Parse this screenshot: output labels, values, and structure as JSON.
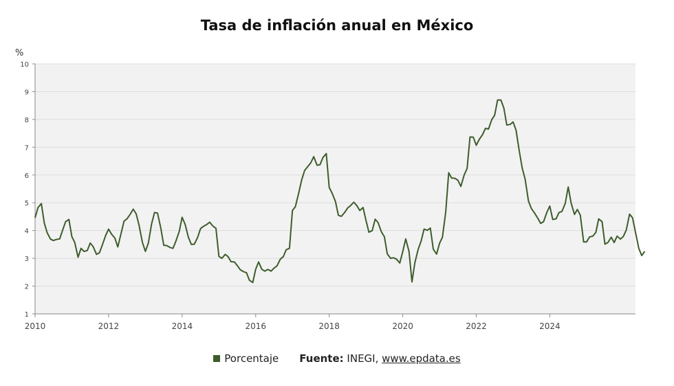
{
  "chart_data": {
    "type": "line",
    "title": "Tasa de inflación anual en México",
    "unit_label": "%",
    "xlim": [
      2010.0,
      2026.33
    ],
    "ylim": [
      1,
      10
    ],
    "x_ticks": [
      "2010",
      "2012",
      "2014",
      "2016",
      "2018",
      "2020",
      "2022",
      "2024"
    ],
    "y_ticks": [
      1,
      2,
      3,
      4,
      5,
      6,
      7,
      8,
      9,
      10
    ],
    "grid": true,
    "legend_position": "bottom",
    "series": [
      {
        "name": "Porcentaje",
        "color": "#3d5c2b",
        "points": [
          [
            2010.0,
            4.46
          ],
          [
            2010.08,
            4.83
          ],
          [
            2010.17,
            4.97
          ],
          [
            2010.25,
            4.27
          ],
          [
            2010.33,
            3.92
          ],
          [
            2010.42,
            3.69
          ],
          [
            2010.5,
            3.64
          ],
          [
            2010.58,
            3.68
          ],
          [
            2010.67,
            3.7
          ],
          [
            2010.75,
            4.02
          ],
          [
            2010.83,
            4.32
          ],
          [
            2010.92,
            4.4
          ],
          [
            2011.0,
            3.78
          ],
          [
            2011.08,
            3.57
          ],
          [
            2011.17,
            3.04
          ],
          [
            2011.25,
            3.36
          ],
          [
            2011.33,
            3.25
          ],
          [
            2011.42,
            3.28
          ],
          [
            2011.5,
            3.55
          ],
          [
            2011.58,
            3.42
          ],
          [
            2011.67,
            3.14
          ],
          [
            2011.75,
            3.2
          ],
          [
            2011.83,
            3.48
          ],
          [
            2011.92,
            3.82
          ],
          [
            2012.0,
            4.05
          ],
          [
            2012.08,
            3.87
          ],
          [
            2012.17,
            3.73
          ],
          [
            2012.25,
            3.41
          ],
          [
            2012.33,
            3.85
          ],
          [
            2012.42,
            4.34
          ],
          [
            2012.5,
            4.42
          ],
          [
            2012.58,
            4.57
          ],
          [
            2012.67,
            4.77
          ],
          [
            2012.75,
            4.6
          ],
          [
            2012.83,
            4.18
          ],
          [
            2012.92,
            3.57
          ],
          [
            2013.0,
            3.25
          ],
          [
            2013.08,
            3.55
          ],
          [
            2013.17,
            4.25
          ],
          [
            2013.25,
            4.65
          ],
          [
            2013.33,
            4.63
          ],
          [
            2013.42,
            4.09
          ],
          [
            2013.5,
            3.47
          ],
          [
            2013.58,
            3.46
          ],
          [
            2013.67,
            3.39
          ],
          [
            2013.75,
            3.36
          ],
          [
            2013.83,
            3.62
          ],
          [
            2013.92,
            3.97
          ],
          [
            2014.0,
            4.48
          ],
          [
            2014.08,
            4.23
          ],
          [
            2014.17,
            3.76
          ],
          [
            2014.25,
            3.5
          ],
          [
            2014.33,
            3.51
          ],
          [
            2014.42,
            3.75
          ],
          [
            2014.5,
            4.07
          ],
          [
            2014.58,
            4.15
          ],
          [
            2014.67,
            4.22
          ],
          [
            2014.75,
            4.3
          ],
          [
            2014.83,
            4.17
          ],
          [
            2014.92,
            4.08
          ],
          [
            2015.0,
            3.07
          ],
          [
            2015.08,
            3.0
          ],
          [
            2015.17,
            3.14
          ],
          [
            2015.25,
            3.06
          ],
          [
            2015.33,
            2.88
          ],
          [
            2015.42,
            2.87
          ],
          [
            2015.5,
            2.74
          ],
          [
            2015.58,
            2.59
          ],
          [
            2015.67,
            2.52
          ],
          [
            2015.75,
            2.48
          ],
          [
            2015.83,
            2.21
          ],
          [
            2015.92,
            2.13
          ],
          [
            2016.0,
            2.61
          ],
          [
            2016.08,
            2.87
          ],
          [
            2016.17,
            2.6
          ],
          [
            2016.25,
            2.54
          ],
          [
            2016.33,
            2.6
          ],
          [
            2016.42,
            2.54
          ],
          [
            2016.5,
            2.65
          ],
          [
            2016.58,
            2.73
          ],
          [
            2016.67,
            2.97
          ],
          [
            2016.75,
            3.06
          ],
          [
            2016.83,
            3.31
          ],
          [
            2016.92,
            3.36
          ],
          [
            2017.0,
            4.72
          ],
          [
            2017.08,
            4.86
          ],
          [
            2017.17,
            5.35
          ],
          [
            2017.25,
            5.82
          ],
          [
            2017.33,
            6.16
          ],
          [
            2017.42,
            6.31
          ],
          [
            2017.5,
            6.44
          ],
          [
            2017.58,
            6.66
          ],
          [
            2017.67,
            6.35
          ],
          [
            2017.75,
            6.37
          ],
          [
            2017.83,
            6.63
          ],
          [
            2017.92,
            6.77
          ],
          [
            2018.0,
            5.55
          ],
          [
            2018.08,
            5.34
          ],
          [
            2018.17,
            5.04
          ],
          [
            2018.25,
            4.55
          ],
          [
            2018.33,
            4.51
          ],
          [
            2018.42,
            4.65
          ],
          [
            2018.5,
            4.81
          ],
          [
            2018.58,
            4.9
          ],
          [
            2018.67,
            5.02
          ],
          [
            2018.75,
            4.9
          ],
          [
            2018.83,
            4.72
          ],
          [
            2018.92,
            4.83
          ],
          [
            2019.0,
            4.37
          ],
          [
            2019.08,
            3.94
          ],
          [
            2019.17,
            4.0
          ],
          [
            2019.25,
            4.41
          ],
          [
            2019.33,
            4.28
          ],
          [
            2019.42,
            3.95
          ],
          [
            2019.5,
            3.78
          ],
          [
            2019.58,
            3.16
          ],
          [
            2019.67,
            3.0
          ],
          [
            2019.75,
            3.02
          ],
          [
            2019.83,
            2.97
          ],
          [
            2019.92,
            2.83
          ],
          [
            2020.0,
            3.24
          ],
          [
            2020.08,
            3.7
          ],
          [
            2020.17,
            3.25
          ],
          [
            2020.25,
            2.15
          ],
          [
            2020.33,
            2.84
          ],
          [
            2020.42,
            3.33
          ],
          [
            2020.5,
            3.62
          ],
          [
            2020.58,
            4.05
          ],
          [
            2020.67,
            4.01
          ],
          [
            2020.75,
            4.09
          ],
          [
            2020.83,
            3.33
          ],
          [
            2020.92,
            3.15
          ],
          [
            2021.0,
            3.54
          ],
          [
            2021.08,
            3.76
          ],
          [
            2021.17,
            4.67
          ],
          [
            2021.25,
            6.08
          ],
          [
            2021.33,
            5.89
          ],
          [
            2021.42,
            5.88
          ],
          [
            2021.5,
            5.81
          ],
          [
            2021.58,
            5.59
          ],
          [
            2021.67,
            6.0
          ],
          [
            2021.75,
            6.24
          ],
          [
            2021.83,
            7.37
          ],
          [
            2021.92,
            7.36
          ],
          [
            2022.0,
            7.07
          ],
          [
            2022.08,
            7.28
          ],
          [
            2022.17,
            7.45
          ],
          [
            2022.25,
            7.68
          ],
          [
            2022.33,
            7.65
          ],
          [
            2022.42,
            7.99
          ],
          [
            2022.5,
            8.15
          ],
          [
            2022.58,
            8.7
          ],
          [
            2022.67,
            8.7
          ],
          [
            2022.75,
            8.41
          ],
          [
            2022.83,
            7.8
          ],
          [
            2022.92,
            7.82
          ],
          [
            2023.0,
            7.91
          ],
          [
            2023.08,
            7.62
          ],
          [
            2023.17,
            6.85
          ],
          [
            2023.25,
            6.25
          ],
          [
            2023.33,
            5.84
          ],
          [
            2023.42,
            5.06
          ],
          [
            2023.5,
            4.79
          ],
          [
            2023.58,
            4.64
          ],
          [
            2023.67,
            4.45
          ],
          [
            2023.75,
            4.26
          ],
          [
            2023.83,
            4.32
          ],
          [
            2023.92,
            4.66
          ],
          [
            2024.0,
            4.88
          ],
          [
            2024.08,
            4.4
          ],
          [
            2024.17,
            4.42
          ],
          [
            2024.25,
            4.65
          ],
          [
            2024.33,
            4.69
          ],
          [
            2024.42,
            4.98
          ],
          [
            2024.5,
            5.57
          ],
          [
            2024.58,
            4.99
          ],
          [
            2024.67,
            4.58
          ],
          [
            2024.75,
            4.76
          ],
          [
            2024.83,
            4.55
          ],
          [
            2024.92,
            3.59
          ],
          [
            2025.0,
            3.59
          ],
          [
            2025.08,
            3.77
          ],
          [
            2025.17,
            3.8
          ],
          [
            2025.25,
            3.93
          ],
          [
            2025.33,
            4.42
          ],
          [
            2025.42,
            4.32
          ],
          [
            2025.5,
            3.51
          ],
          [
            2025.58,
            3.57
          ],
          [
            2025.67,
            3.76
          ],
          [
            2025.75,
            3.57
          ],
          [
            2025.83,
            3.8
          ],
          [
            2025.92,
            3.69
          ],
          [
            2026.0,
            3.79
          ],
          [
            2026.08,
            4.02
          ],
          [
            2026.17,
            4.59
          ],
          [
            2026.25,
            4.46
          ],
          [
            2026.33,
            3.94
          ],
          [
            2026.42,
            3.36
          ],
          [
            2026.5,
            3.1
          ],
          [
            2026.58,
            3.25
          ]
        ]
      }
    ]
  },
  "legend": {
    "series_label": "Porcentaje",
    "source_label": "Fuente:",
    "source_text": " INEGI, ",
    "source_link": "www.epdata.es"
  }
}
